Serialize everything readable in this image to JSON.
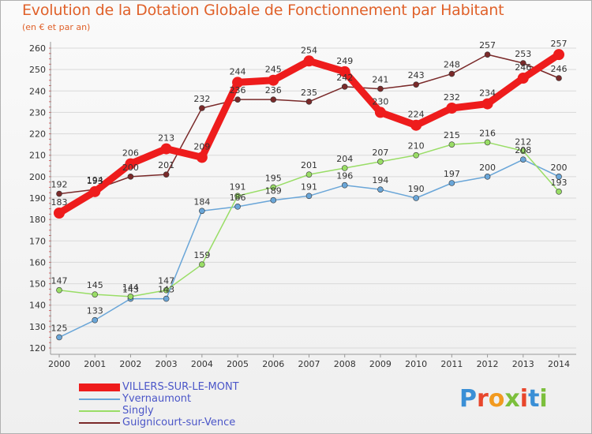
{
  "chart_data": {
    "type": "line",
    "title": "Evolution de la Dotation Globale de Fonctionnement par Habitant",
    "subtitle": "(en € et par an)",
    "xlabel": "",
    "ylabel": "",
    "ylim": [
      120,
      260
    ],
    "ytick_step": 10,
    "grid": "horizontal",
    "legend_position": "bottom-left",
    "x": [
      "2000",
      "2001",
      "2002",
      "2003",
      "2004",
      "2005",
      "2006",
      "2007",
      "2008",
      "2009",
      "2010",
      "2011",
      "2012",
      "2013",
      "2014"
    ],
    "series": [
      {
        "name": "VILLERS-SUR-LE-MONT",
        "color": "#ee1c1c",
        "emphasis": true,
        "values": [
          183,
          193,
          206,
          213,
          209,
          244,
          245,
          254,
          249,
          230,
          224,
          232,
          234,
          246,
          257
        ]
      },
      {
        "name": "Yvernaumont",
        "color": "#6aa6d8",
        "emphasis": false,
        "values": [
          125,
          133,
          143,
          143,
          184,
          186,
          189,
          191,
          196,
          194,
          190,
          197,
          200,
          208,
          200
        ]
      },
      {
        "name": "Singly",
        "color": "#99dd66",
        "emphasis": false,
        "values": [
          147,
          145,
          144,
          147,
          159,
          191,
          195,
          201,
          204,
          207,
          210,
          215,
          216,
          212,
          193
        ]
      },
      {
        "name": "Guignicourt-sur-Vence",
        "color": "#7a2a2a",
        "emphasis": false,
        "values": [
          192,
          194,
          200,
          201,
          232,
          236,
          236,
          235,
          242,
          241,
          243,
          248,
          257,
          253,
          246
        ]
      }
    ]
  },
  "logo": {
    "text": "Proxiti",
    "letters": [
      "P",
      "r",
      "o",
      "x",
      "i",
      "t",
      "i"
    ],
    "colors": [
      "#3a8fd6",
      "#e8462c",
      "#f29a1f",
      "#7cbf3c",
      "#e8462c",
      "#3a8fd6",
      "#7cbf3c"
    ]
  }
}
